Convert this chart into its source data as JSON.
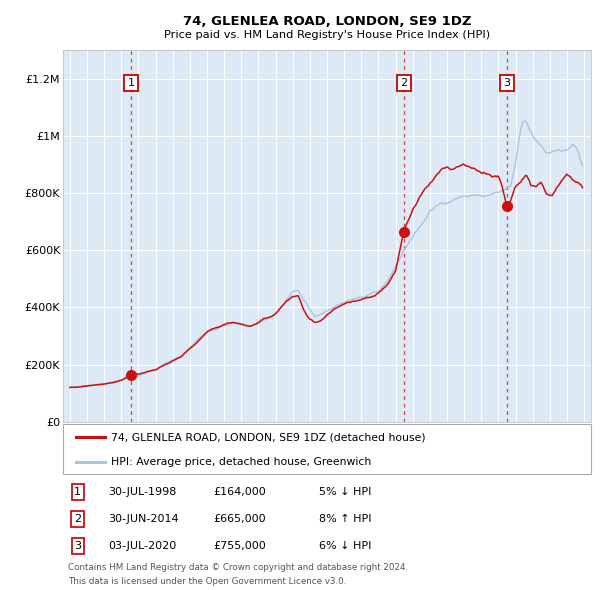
{
  "title": "74, GLENLEA ROAD, LONDON, SE9 1DZ",
  "subtitle": "Price paid vs. HM Land Registry's House Price Index (HPI)",
  "hpi_color": "#aac4e0",
  "price_color": "#cc1111",
  "bg_color": "#ddeaf6",
  "grid_color": "#ffffff",
  "ylim": [
    0,
    1300000
  ],
  "yticks": [
    0,
    200000,
    400000,
    600000,
    800000,
    1000000,
    1200000
  ],
  "ytick_labels": [
    "£0",
    "£200K",
    "£400K",
    "£600K",
    "£800K",
    "£1M",
    "£1.2M"
  ],
  "sale_dates_decimal": [
    1998.577,
    2014.499,
    2020.503
  ],
  "sale_prices": [
    164000,
    665000,
    755000
  ],
  "sale_labels": [
    "1",
    "2",
    "3"
  ],
  "legend_entries": [
    "74, GLENLEA ROAD, LONDON, SE9 1DZ (detached house)",
    "HPI: Average price, detached house, Greenwich"
  ],
  "table_rows": [
    [
      "1",
      "30-JUL-1998",
      "£164,000",
      "5% ↓ HPI"
    ],
    [
      "2",
      "30-JUN-2014",
      "£665,000",
      "8% ↑ HPI"
    ],
    [
      "3",
      "03-JUL-2020",
      "£755,000",
      "6% ↓ HPI"
    ]
  ],
  "footnote1": "Contains HM Land Registry data © Crown copyright and database right 2024.",
  "footnote2": "This data is licensed under the Open Government Licence v3.0.",
  "xlim": [
    1994.6,
    2025.4
  ],
  "xticks": [
    1995,
    1996,
    1997,
    1998,
    1999,
    2000,
    2001,
    2002,
    2003,
    2004,
    2005,
    2006,
    2007,
    2008,
    2009,
    2010,
    2011,
    2012,
    2013,
    2014,
    2015,
    2016,
    2017,
    2018,
    2019,
    2020,
    2021,
    2022,
    2023,
    2024,
    2025
  ]
}
